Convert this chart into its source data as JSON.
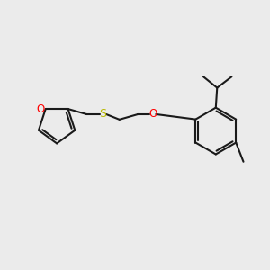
{
  "bg_color": "#ebebeb",
  "bond_color": "#1a1a1a",
  "o_color": "#ff0000",
  "s_color": "#b8b800",
  "line_width": 1.5,
  "font_size": 8.5,
  "figsize": [
    3.0,
    3.0
  ],
  "dpi": 100,
  "xlim": [
    0,
    10
  ],
  "ylim": [
    0,
    10
  ]
}
